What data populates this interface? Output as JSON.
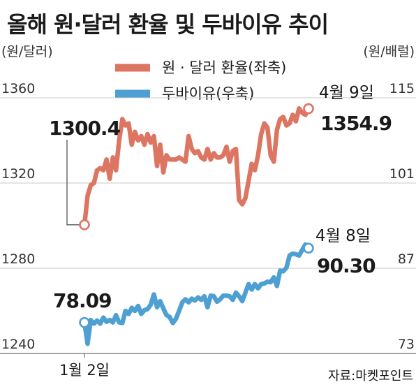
{
  "chart_data": {
    "type": "line",
    "title": "올해 원·달러 환율 및 두바이유 추이",
    "left_unit": "(원/달러)",
    "right_unit": "(원/배럴)",
    "ylim_left": [
      1240,
      1360
    ],
    "ylim_right": [
      73,
      115
    ],
    "left_ticks": [
      "1360",
      "1320",
      "1280",
      "1240"
    ],
    "right_ticks": [
      "115",
      "101",
      "87",
      "73"
    ],
    "x_start_label": "1월 2일",
    "grid": true,
    "legend_position": "top-center",
    "source": "자료:마켓포인트",
    "series": [
      {
        "name": "원 · 달러 환율(좌축)",
        "axis": "left",
        "color": "#dd7563",
        "values": [
          1300.4,
          1314,
          1319,
          1320,
          1326,
          1327,
          1326,
          1331,
          1322,
          1332,
          1326,
          1340,
          1350,
          1347,
          1348,
          1338,
          1344,
          1340,
          1342,
          1338,
          1343,
          1339,
          1342,
          1328,
          1338,
          1325,
          1333,
          1331,
          1331,
          1331,
          1332,
          1331,
          1330,
          1342,
          1336,
          1334,
          1335,
          1332,
          1331,
          1336,
          1331,
          1334,
          1332,
          1332,
          1333,
          1337,
          1330,
          1335,
          1336,
          1312,
          1310,
          1313,
          1321,
          1329,
          1326,
          1333,
          1343,
          1348,
          1346,
          1333,
          1330,
          1345,
          1350,
          1351,
          1347,
          1348,
          1352,
          1349,
          1355,
          1353,
          1352,
          1354.9
        ],
        "first_label": "1300.4",
        "last_label": "1354.9",
        "last_date": "4월 9일"
      },
      {
        "name": "두바이유(우축)",
        "axis": "right",
        "color": "#4e9fd2",
        "values": [
          78.09,
          74.6,
          78.5,
          77.9,
          78.4,
          77.9,
          78.9,
          78.2,
          78.5,
          78.1,
          79.3,
          78.1,
          78.0,
          80.0,
          79.5,
          80.5,
          80.0,
          80.8,
          79.5,
          80.1,
          80.3,
          81.0,
          82.7,
          80.6,
          81.6,
          80.4,
          79.3,
          79.0,
          78.0,
          78.7,
          80.0,
          81.4,
          81.9,
          81.4,
          82.0,
          81.7,
          82.2,
          81.8,
          82.4,
          80.6,
          82.5,
          82.4,
          81.5,
          81.9,
          82.5,
          82.5,
          82.4,
          81.8,
          83.0,
          82.4,
          81.6,
          83.0,
          84.4,
          83.5,
          84.4,
          83.7,
          84.4,
          84.5,
          84.8,
          84.7,
          85.5,
          84.1,
          86.6,
          86.5,
          87.1,
          89.1,
          89.4,
          89.3,
          89.1,
          90.0,
          90.9,
          90.3
        ],
        "first_label": "78.09",
        "last_label": "90.30",
        "last_date": "4월 8일"
      }
    ]
  }
}
